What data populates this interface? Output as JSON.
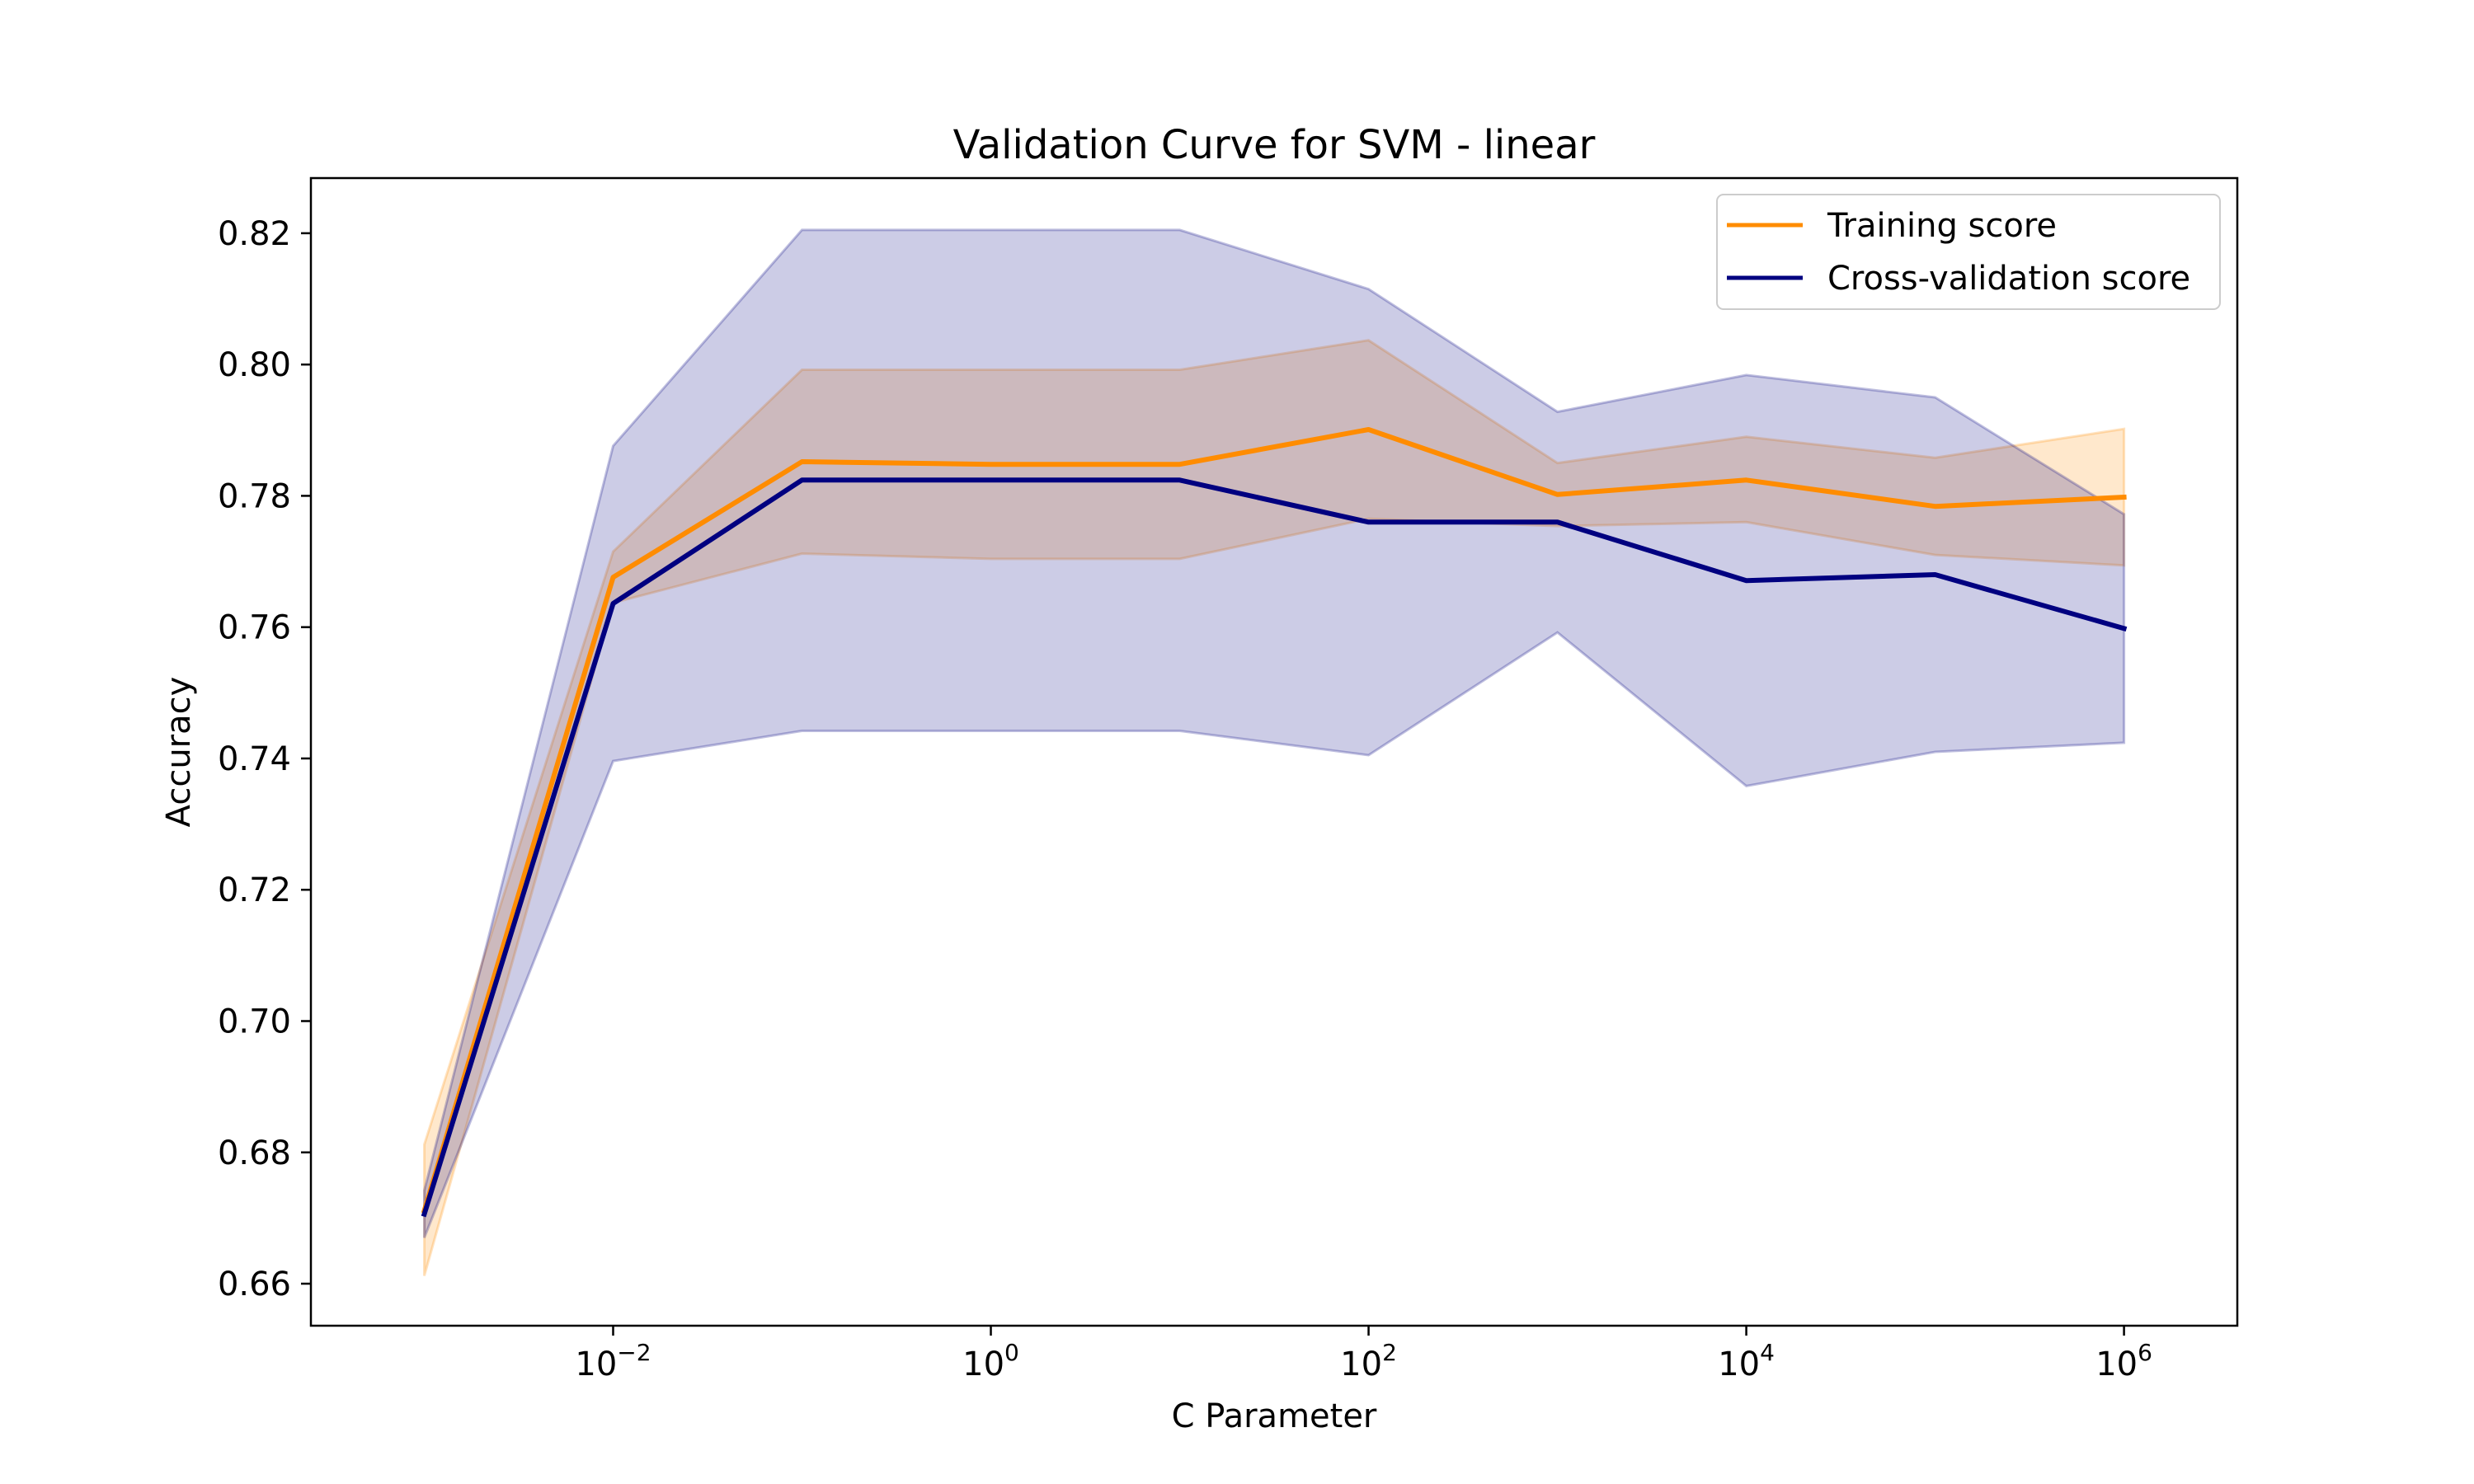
{
  "chart_data": {
    "type": "line",
    "title": "Validation Curve for SVM - linear",
    "xlabel": "C Parameter",
    "ylabel": "Accuracy",
    "x_scale": "log",
    "xlim": [
      0.000251,
      3981000
    ],
    "ylim": [
      0.6536,
      0.8284
    ],
    "x": [
      0.001,
      0.01,
      0.1,
      1,
      10,
      100,
      1000,
      10000,
      100000,
      1000000
    ],
    "x_ticks": [
      {
        "value": 0.01,
        "base": "10",
        "exp": "−2"
      },
      {
        "value": 1,
        "base": "10",
        "exp": "0"
      },
      {
        "value": 100,
        "base": "10",
        "exp": "2"
      },
      {
        "value": 10000,
        "base": "10",
        "exp": "4"
      },
      {
        "value": 1000000,
        "base": "10",
        "exp": "6"
      }
    ],
    "y_ticks": [
      {
        "value": 0.66,
        "label": "0.66"
      },
      {
        "value": 0.68,
        "label": "0.68"
      },
      {
        "value": 0.7,
        "label": "0.70"
      },
      {
        "value": 0.72,
        "label": "0.72"
      },
      {
        "value": 0.74,
        "label": "0.74"
      },
      {
        "value": 0.76,
        "label": "0.76"
      },
      {
        "value": 0.78,
        "label": "0.78"
      },
      {
        "value": 0.8,
        "label": "0.80"
      },
      {
        "value": 0.82,
        "label": "0.82"
      }
    ],
    "grid": false,
    "legend_position": "top-right",
    "series": [
      {
        "name": "Training score",
        "color": "#ff8c00",
        "band_color": "#ff8c00",
        "band_opacity": 0.2,
        "values": [
          0.6711,
          0.7676,
          0.7852,
          0.7848,
          0.7848,
          0.7901,
          0.7802,
          0.7824,
          0.7784,
          0.7798
        ],
        "upper": [
          0.6812,
          0.7715,
          0.7992,
          0.7992,
          0.7992,
          0.8037,
          0.785,
          0.789,
          0.7858,
          0.7902
        ],
        "lower": [
          0.6612,
          0.7637,
          0.7712,
          0.7704,
          0.7704,
          0.7765,
          0.7754,
          0.776,
          0.771,
          0.7694
        ]
      },
      {
        "name": "Cross-validation score",
        "color": "#000080",
        "band_color": "#000080",
        "band_opacity": 0.2,
        "values": [
          0.6706,
          0.7636,
          0.7824,
          0.7824,
          0.7824,
          0.776,
          0.776,
          0.7671,
          0.768,
          0.7598
        ],
        "upper": [
          0.6742,
          0.7876,
          0.8205,
          0.8205,
          0.8205,
          0.8115,
          0.7928,
          0.7984,
          0.795,
          0.7772
        ],
        "lower": [
          0.667,
          0.7396,
          0.7442,
          0.7442,
          0.7442,
          0.7405,
          0.7592,
          0.7358,
          0.741,
          0.7424
        ]
      }
    ]
  }
}
